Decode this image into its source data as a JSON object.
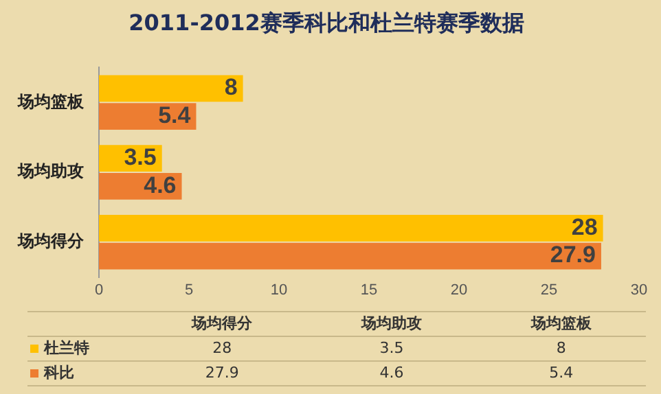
{
  "chart_data": {
    "type": "bar",
    "orientation": "horizontal",
    "title": "2011-2012赛季科比和杜兰特赛季数据",
    "categories": [
      "场均篮板",
      "场均助攻",
      "场均得分"
    ],
    "series": [
      {
        "name": "杜兰特",
        "color": "#ffc000",
        "values": [
          8,
          3.5,
          28
        ]
      },
      {
        "name": "科比",
        "color": "#ed7d31",
        "values": [
          5.4,
          4.6,
          27.9
        ]
      }
    ],
    "xlim": [
      0,
      30
    ],
    "xticks": [
      0,
      5,
      10,
      15,
      20,
      25,
      30
    ],
    "data_labels": true,
    "annotations": [
      "28",
      "3.5",
      "8",
      "27.9",
      "4.6",
      "5.4"
    ],
    "legend": "bottom",
    "grid": false
  }
}
